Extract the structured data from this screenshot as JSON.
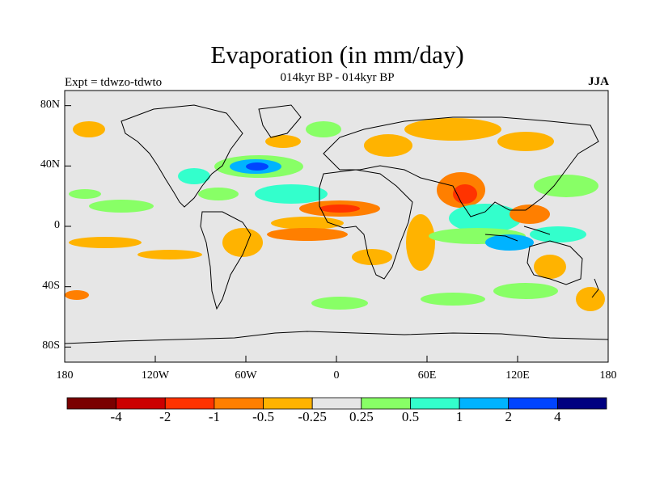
{
  "title": "Evaporation (in mm/day)",
  "subtitle": "014kyr BP - 014kyr BP",
  "left_label": "Expt = tdwzo-tdwto",
  "right_label": "JJA",
  "lat_ticks": [
    "80N",
    "40N",
    "0",
    "40S",
    "80S"
  ],
  "lon_ticks": [
    "180",
    "120W",
    "60W",
    "0",
    "60E",
    "120E",
    "180"
  ],
  "colorbar": {
    "colors": [
      "#7a0000",
      "#cc0000",
      "#ff3300",
      "#ff7f00",
      "#ffb300",
      "#e6e6e6",
      "#88ff66",
      "#33ffcc",
      "#00b3ff",
      "#0044ff",
      "#000080"
    ],
    "labels": [
      "-4",
      "-2",
      "-1",
      "-0.5",
      "-0.25",
      "0.25",
      "0.5",
      "1",
      "2",
      "4"
    ]
  },
  "map": {
    "background": "#e6e6e6",
    "coastline_color": "#000000"
  }
}
